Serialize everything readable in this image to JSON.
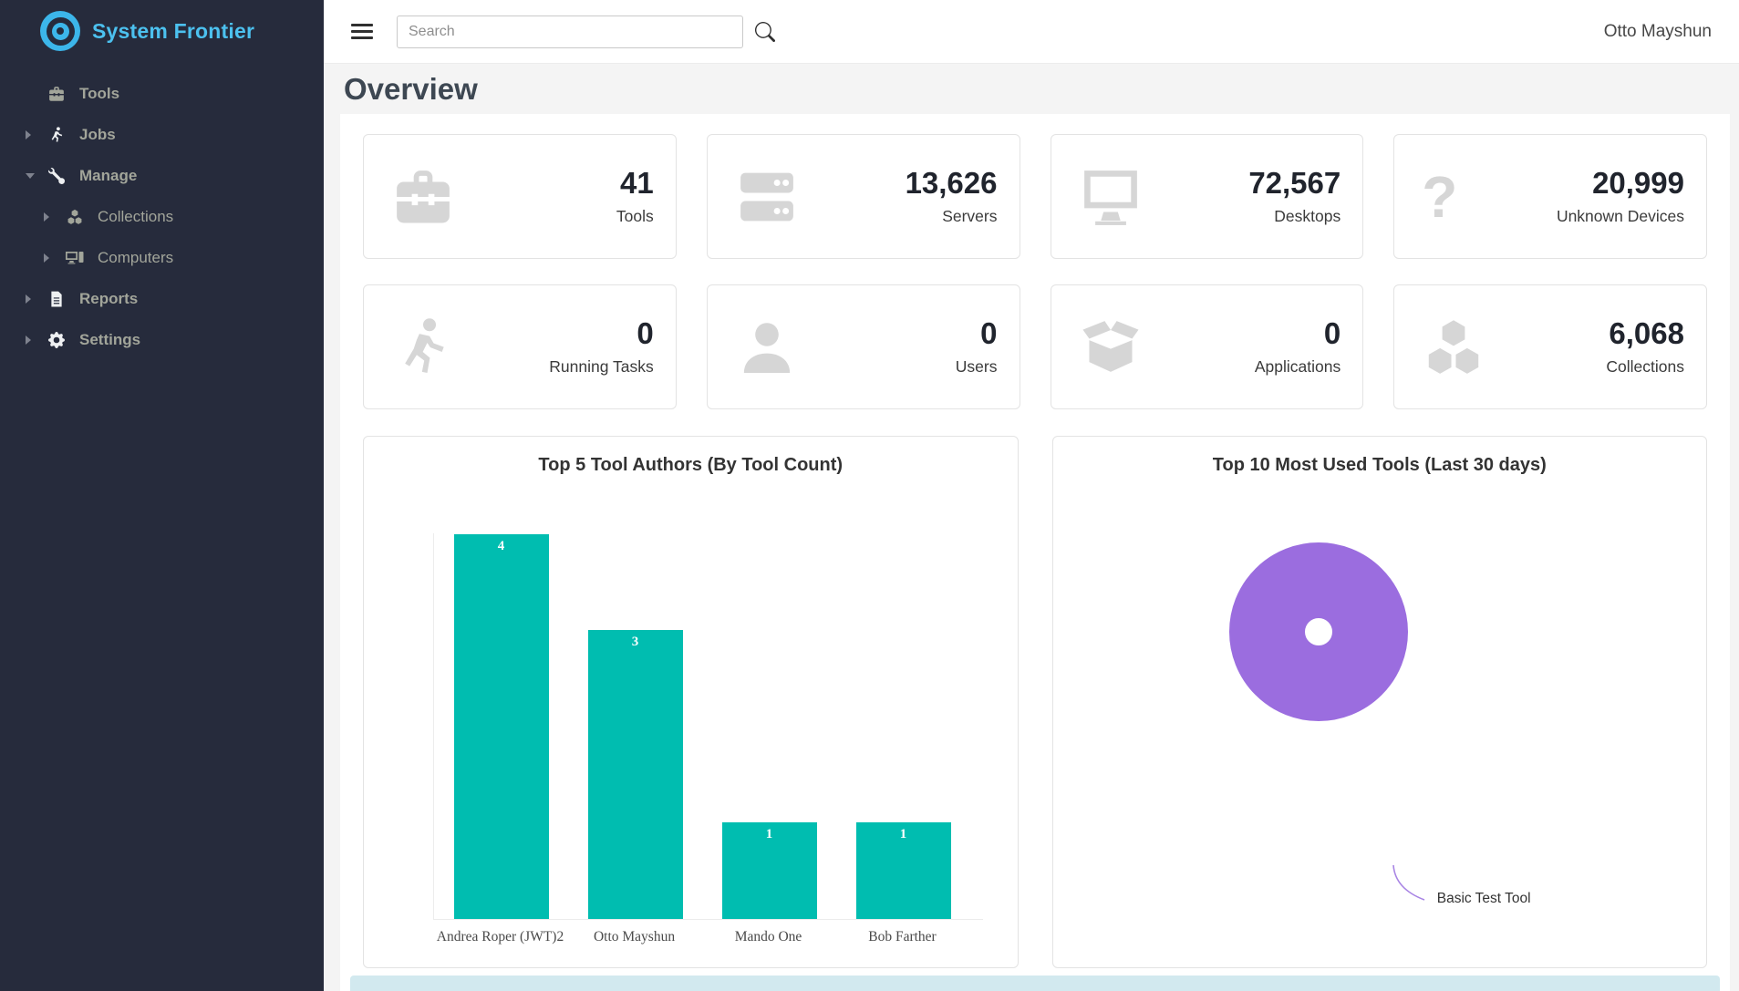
{
  "brand": {
    "name": "System Frontier"
  },
  "topbar": {
    "search_placeholder": "Search",
    "user_name": "Otto Mayshun"
  },
  "page": {
    "title": "Overview"
  },
  "sidebar": {
    "items": [
      {
        "label": "Tools"
      },
      {
        "label": "Jobs"
      },
      {
        "label": "Manage"
      },
      {
        "label": "Collections"
      },
      {
        "label": "Computers"
      },
      {
        "label": "Reports"
      },
      {
        "label": "Settings"
      }
    ]
  },
  "stats": [
    {
      "label": "Tools",
      "value": "41",
      "icon": "toolbox-icon"
    },
    {
      "label": "Servers",
      "value": "13,626",
      "icon": "server-icon"
    },
    {
      "label": "Desktops",
      "value": "72,567",
      "icon": "desktop-icon"
    },
    {
      "label": "Unknown Devices",
      "value": "20,999",
      "icon": "question-mark-icon"
    },
    {
      "label": "Running Tasks",
      "value": "0",
      "icon": "running-person-icon"
    },
    {
      "label": "Users",
      "value": "0",
      "icon": "user-icon"
    },
    {
      "label": "Applications",
      "value": "0",
      "icon": "open-box-icon"
    },
    {
      "label": "Collections",
      "value": "6,068",
      "icon": "cubes-icon"
    }
  ],
  "icons": {
    "question_glyph": "?"
  },
  "chart_data": [
    {
      "type": "bar",
      "title": "Top 5 Tool Authors (By Tool Count)",
      "categories": [
        "Andrea Roper (JWT)2",
        "Otto Mayshun",
        "Mando One",
        "Bob Farther"
      ],
      "values": [
        4,
        3,
        1,
        1
      ],
      "bar_color": "#00bdb0",
      "value_labels_shown": true,
      "xlabel": "",
      "ylabel": "",
      "ylim": [
        0,
        4
      ],
      "grid": false,
      "legend": "none"
    },
    {
      "type": "pie",
      "subtype": "donut",
      "title": "Top 10 Most Used Tools (Last 30 days)",
      "labels": [
        "Basic Test Tool"
      ],
      "values": [
        100
      ],
      "colors": [
        "#9b6ddf"
      ],
      "annotation": "Basic Test Tool",
      "legend": "none"
    }
  ],
  "colors": {
    "sidebar_bg": "#262b3c",
    "brand_blue": "#4cc1ef",
    "bar_teal": "#00bdb0",
    "donut_purple": "#9b6ddf",
    "alert_blue": "#d2e9ef"
  }
}
